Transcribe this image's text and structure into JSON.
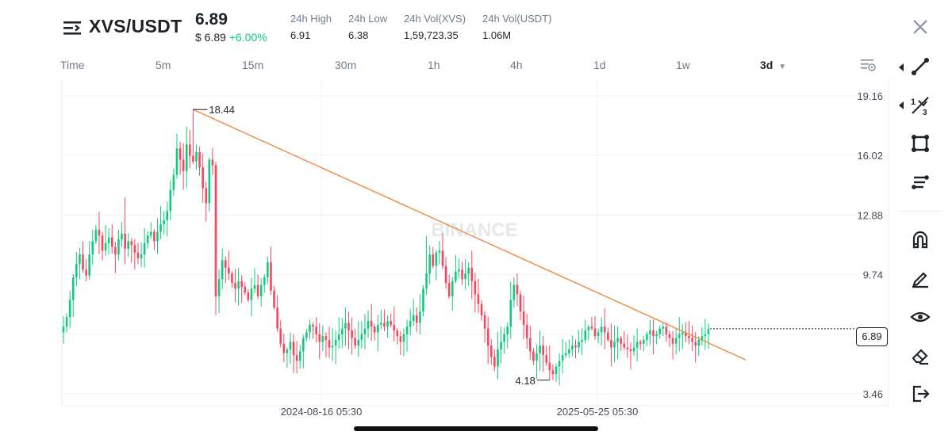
{
  "header": {
    "pair": "XVS/USDT",
    "last_price": "6.89",
    "usd_price": "$ 6.89",
    "change": "+6.00%",
    "stats": [
      {
        "label": "24h High",
        "value": "6.91"
      },
      {
        "label": "24h Low",
        "value": "6.38"
      },
      {
        "label": "24h Vol(XVS)",
        "value": "1,59,723.35"
      },
      {
        "label": "24h Vol(USDT)",
        "value": "1.06M"
      }
    ]
  },
  "timeframes": [
    "Time",
    "5m",
    "15m",
    "30m",
    "1h",
    "4h",
    "1d",
    "1w",
    "3d"
  ],
  "active_timeframe": "3d",
  "chart_data": {
    "type": "candlestick",
    "watermark": "BINANCE",
    "y_ticks": [
      "19.16",
      "16.02",
      "12.88",
      "9.74",
      "3.46"
    ],
    "x_ticks": [
      "2024-08-16 05:30",
      "2025-05-25 05:30"
    ],
    "ylim": [
      3.0,
      19.8
    ],
    "current_price_label": "6.89",
    "current_price": 6.89,
    "high_label": "18.44",
    "high_value": 18.44,
    "low_label": "4.18",
    "low_value": 4.18,
    "up_color": "#0ecb81",
    "down_color": "#f6465d",
    "trendline_color": "#f0883e",
    "closes": [
      7.0,
      7.5,
      8.4,
      9.6,
      10.3,
      10.8,
      10.0,
      9.7,
      10.8,
      11.5,
      12.1,
      11.8,
      11.0,
      11.4,
      11.7,
      11.2,
      10.8,
      11.6,
      11.9,
      11.1,
      11.5,
      11.3,
      10.9,
      10.6,
      10.8,
      11.4,
      11.8,
      12.0,
      11.5,
      12.0,
      12.4,
      12.6,
      13.1,
      14.2,
      15.0,
      16.4,
      15.8,
      15.2,
      16.6,
      16.0,
      15.7,
      16.2,
      15.4,
      14.3,
      13.5,
      15.8,
      15.5,
      8.6,
      9.5,
      10.5,
      10.1,
      9.8,
      9.3,
      9.0,
      9.4,
      9.1,
      8.8,
      8.4,
      9.0,
      9.2,
      8.6,
      9.2,
      9.6,
      10.4,
      8.9,
      8.0,
      6.9,
      6.1,
      5.6,
      5.8,
      6.2,
      5.5,
      5.2,
      5.7,
      6.4,
      6.7,
      7.1,
      7.0,
      6.6,
      6.2,
      6.5,
      6.3,
      5.9,
      6.0,
      6.3,
      6.6,
      6.9,
      7.2,
      6.8,
      6.4,
      6.0,
      6.3,
      6.6,
      6.9,
      7.3,
      7.0,
      6.7,
      7.1,
      7.2,
      7.0,
      7.3,
      7.1,
      6.8,
      6.5,
      6.2,
      6.6,
      7.0,
      7.3,
      7.6,
      7.2,
      7.8,
      9.0,
      9.8,
      10.8,
      10.2,
      10.9,
      11.0,
      10.2,
      9.3,
      8.6,
      9.4,
      9.9,
      10.0,
      9.5,
      9.8,
      10.1,
      9.4,
      8.7,
      8.2,
      7.6,
      6.9,
      6.0,
      5.4,
      4.9,
      5.8,
      6.2,
      6.6,
      7.0,
      8.4,
      9.2,
      8.7,
      7.8,
      7.1,
      6.4,
      5.7,
      5.2,
      5.6,
      6.0,
      5.5,
      5.1,
      4.7,
      4.5,
      4.9,
      5.2,
      5.5,
      5.6,
      5.8,
      6.0,
      5.9,
      6.2,
      6.3,
      6.8,
      7.0,
      6.9,
      6.5,
      6.7,
      7.0,
      6.7,
      6.3,
      5.9,
      6.2,
      6.4,
      6.1,
      5.9,
      5.8,
      5.7,
      5.9,
      6.2,
      6.1,
      6.3,
      6.6,
      6.8,
      6.5,
      6.6,
      6.9,
      7.0,
      6.6,
      6.4,
      6.1,
      6.4,
      6.6,
      6.7,
      6.5,
      6.4,
      6.2,
      6.0,
      6.3,
      6.5,
      6.6,
      6.89
    ]
  },
  "toolbar": {
    "tools": [
      "trend-line-icon",
      "fib-icon",
      "shape-icon",
      "brush-levels-icon",
      "magnet-icon",
      "pencil-icon",
      "eye-icon",
      "eraser-icon",
      "exit-icon"
    ]
  }
}
